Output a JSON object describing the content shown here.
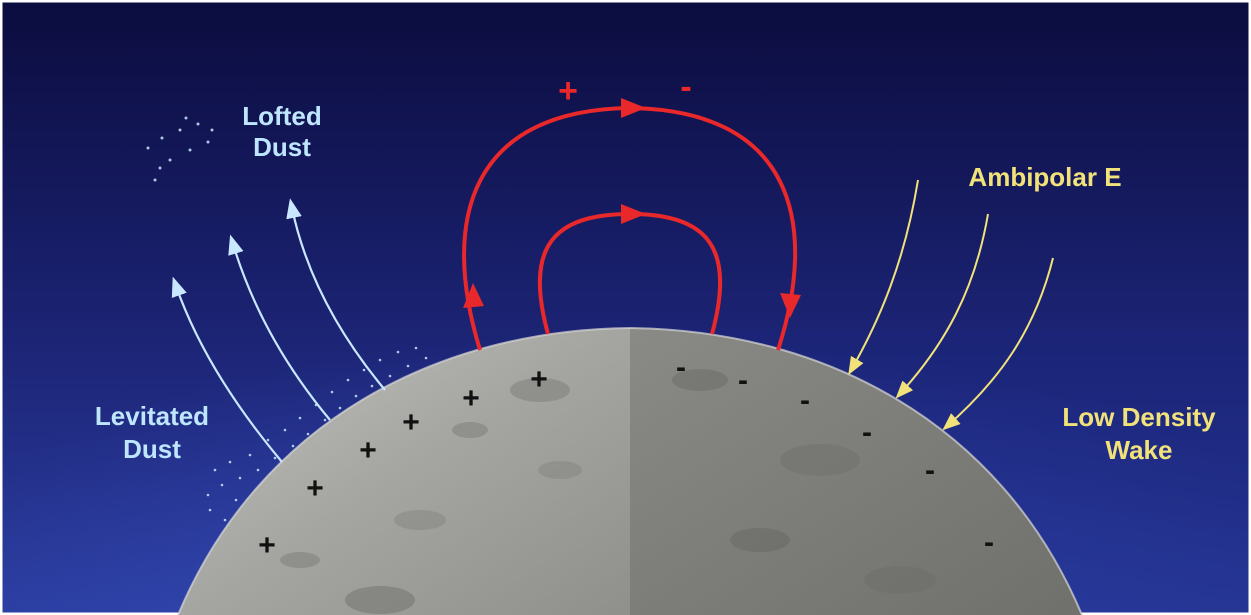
{
  "labels": {
    "lofted_line1": "Lofted",
    "lofted_line2": "Dust",
    "levitated_line1": "Levitated",
    "levitated_line2": "Dust",
    "ambipolar": "Ambipolar E",
    "wake_line1": "Low Density",
    "wake_line2": "Wake",
    "field_plus": "+",
    "field_minus": "-",
    "surface_plus": "+",
    "surface_minus": "-"
  },
  "colors": {
    "sky_top": "#0b0c3e",
    "sky_bottom": "#2a3a9a",
    "dust_label": "#bfe6ff",
    "dust_arrow": "#c9e8ff",
    "field_line": "#e8282a",
    "ambipolar": "#f2e27a",
    "surface_sunlit": "#a7a7a3",
    "surface_dark": "#7c7c78",
    "charge": "#111111"
  }
}
